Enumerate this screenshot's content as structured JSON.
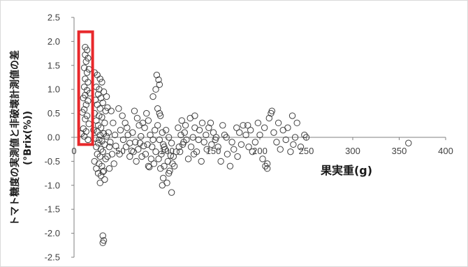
{
  "chart_data": {
    "type": "scatter",
    "title": "",
    "xlabel": "果実重(g)",
    "ylabel_line1": "トマト糖度の実測値と非破壊計測値の差",
    "ylabel_line2": "(°Brix(%))",
    "xlim": [
      0,
      400
    ],
    "ylim": [
      -2.5,
      2.5
    ],
    "x_ticks": [
      0,
      50,
      100,
      150,
      200,
      250,
      300,
      350,
      400
    ],
    "y_ticks": [
      2.5,
      2.0,
      1.5,
      1.0,
      0.5,
      0.0,
      -0.5,
      -1.0,
      -1.5,
      -2.0,
      -2.5
    ],
    "y_tick_labels": [
      "2.5",
      "2.0",
      "1.5",
      "1.0",
      "0.5",
      "0.0",
      "-0.5",
      "-1.0",
      "-1.5",
      "-2.0",
      "-2.5"
    ],
    "x_tick_labels": [
      "0",
      "50",
      "100",
      "150",
      "200",
      "250",
      "300",
      "350",
      "400"
    ],
    "grid": false,
    "marker": "open-circle",
    "marker_color": "#404040",
    "highlight": {
      "x_range": [
        5,
        20
      ],
      "y_range": [
        -0.15,
        2.2
      ],
      "color": "#e8282b"
    },
    "points": [
      [
        12,
        1.88
      ],
      [
        14,
        1.82
      ],
      [
        12,
        1.72
      ],
      [
        15,
        1.65
      ],
      [
        13,
        1.58
      ],
      [
        11,
        1.45
      ],
      [
        16,
        1.42
      ],
      [
        14,
        1.35
      ],
      [
        12,
        1.22
      ],
      [
        15,
        1.15
      ],
      [
        11,
        1.05
      ],
      [
        14,
        0.98
      ],
      [
        17,
        0.92
      ],
      [
        12,
        0.88
      ],
      [
        10,
        0.82
      ],
      [
        15,
        0.76
      ],
      [
        13,
        0.68
      ],
      [
        11,
        0.58
      ],
      [
        9,
        0.52
      ],
      [
        14,
        0.45
      ],
      [
        12,
        0.38
      ],
      [
        16,
        0.28
      ],
      [
        10,
        0.18
      ],
      [
        13,
        0.12
      ],
      [
        8,
        0.08
      ],
      [
        11,
        0.02
      ],
      [
        15,
        -0.05
      ],
      [
        22,
        1.35
      ],
      [
        25,
        1.3
      ],
      [
        28,
        1.22
      ],
      [
        30,
        1.15
      ],
      [
        24,
        1.05
      ],
      [
        27,
        1.0
      ],
      [
        32,
        0.95
      ],
      [
        26,
        0.9
      ],
      [
        29,
        0.82
      ],
      [
        23,
        0.78
      ],
      [
        31,
        0.72
      ],
      [
        25,
        0.68
      ],
      [
        28,
        0.6
      ],
      [
        34,
        0.55
      ],
      [
        22,
        0.5
      ],
      [
        27,
        0.45
      ],
      [
        30,
        0.42
      ],
      [
        24,
        0.35
      ],
      [
        33,
        0.3
      ],
      [
        26,
        0.25
      ],
      [
        29,
        0.2
      ],
      [
        21,
        0.15
      ],
      [
        25,
        0.12
      ],
      [
        32,
        0.08
      ],
      [
        28,
        0.05
      ],
      [
        35,
        0.02
      ],
      [
        23,
        -0.02
      ],
      [
        27,
        -0.05
      ],
      [
        30,
        -0.08
      ],
      [
        26,
        -0.12
      ],
      [
        33,
        -0.15
      ],
      [
        24,
        -0.2
      ],
      [
        29,
        -0.25
      ],
      [
        31,
        -0.3
      ],
      [
        25,
        -0.35
      ],
      [
        28,
        -0.4
      ],
      [
        34,
        -0.45
      ],
      [
        22,
        -0.5
      ],
      [
        27,
        -0.55
      ],
      [
        30,
        -0.6
      ],
      [
        24,
        -0.65
      ],
      [
        32,
        -0.7
      ],
      [
        26,
        -0.75
      ],
      [
        29,
        -0.8
      ],
      [
        33,
        -0.88
      ],
      [
        28,
        -0.95
      ],
      [
        31,
        -0.72
      ],
      [
        36,
        -0.4
      ],
      [
        38,
        -0.2
      ],
      [
        37,
        0.1
      ],
      [
        40,
        0.55
      ],
      [
        42,
        0.3
      ],
      [
        39,
        -0.1
      ],
      [
        41,
        -0.35
      ],
      [
        43,
        -0.55
      ],
      [
        38,
        -0.65
      ],
      [
        44,
        0.05
      ],
      [
        45,
        -0.18
      ],
      [
        36,
        0.62
      ],
      [
        35,
        0.85
      ],
      [
        31,
        -2.05
      ],
      [
        32,
        -2.15
      ],
      [
        31,
        -2.2
      ],
      [
        48,
        0.6
      ],
      [
        52,
        0.45
      ],
      [
        55,
        0.3
      ],
      [
        50,
        0.15
      ],
      [
        58,
        0.05
      ],
      [
        53,
        -0.05
      ],
      [
        60,
        -0.12
      ],
      [
        56,
        -0.2
      ],
      [
        62,
        -0.28
      ],
      [
        49,
        -0.35
      ],
      [
        65,
        0.55
      ],
      [
        68,
        0.4
      ],
      [
        70,
        0.25
      ],
      [
        63,
        0.1
      ],
      [
        72,
        0.02
      ],
      [
        66,
        -0.1
      ],
      [
        75,
        -0.18
      ],
      [
        69,
        -0.25
      ],
      [
        73,
        -0.4
      ],
      [
        67,
        -0.5
      ],
      [
        78,
        0.5
      ],
      [
        80,
        0.35
      ],
      [
        76,
        0.2
      ],
      [
        82,
        0.05
      ],
      [
        85,
        -0.05
      ],
      [
        79,
        -0.15
      ],
      [
        88,
        -0.3
      ],
      [
        83,
        -0.45
      ],
      [
        86,
        -0.55
      ],
      [
        81,
        -0.62
      ],
      [
        90,
        0.6
      ],
      [
        93,
        0.45
      ],
      [
        88,
        1.0
      ],
      [
        92,
        1.1
      ],
      [
        85,
        0.85
      ],
      [
        90,
        0.25
      ],
      [
        95,
        0.1
      ],
      [
        92,
        -0.05
      ],
      [
        97,
        -0.2
      ],
      [
        94,
        -0.35
      ],
      [
        80,
        -0.6
      ],
      [
        84,
        -0.2
      ],
      [
        60,
        -0.4
      ],
      [
        57,
        0.2
      ],
      [
        64,
        -0.3
      ],
      [
        71,
        -0.12
      ],
      [
        74,
        0.3
      ],
      [
        77,
        -0.35
      ],
      [
        87,
        0.15
      ],
      [
        91,
        -0.45
      ],
      [
        99,
        0.15
      ],
      [
        102,
        0.0
      ],
      [
        105,
        -0.12
      ],
      [
        98,
        -0.25
      ],
      [
        104,
        -0.38
      ],
      [
        101,
        -0.5
      ],
      [
        108,
        -0.6
      ],
      [
        103,
        -0.7
      ],
      [
        96,
        -0.85
      ],
      [
        100,
        -0.95
      ],
      [
        106,
        -0.55
      ],
      [
        110,
        -0.3
      ],
      [
        95,
        -1.0
      ],
      [
        102,
        -0.75
      ],
      [
        93,
        -0.65
      ],
      [
        92,
        0.5
      ],
      [
        89,
        1.3
      ],
      [
        91,
        1.2
      ],
      [
        96,
        -0.15
      ],
      [
        107,
        -0.4
      ],
      [
        112,
        0.2
      ],
      [
        115,
        0.05
      ],
      [
        118,
        -0.1
      ],
      [
        120,
        0.25
      ],
      [
        113,
        -0.2
      ],
      [
        116,
        0.35
      ],
      [
        119,
        0.1
      ],
      [
        121,
        -0.05
      ],
      [
        114,
        -0.3
      ],
      [
        117,
        -0.15
      ],
      [
        125,
        0.4
      ],
      [
        130,
        0.2
      ],
      [
        128,
        0.0
      ],
      [
        135,
        0.15
      ],
      [
        140,
        -0.1
      ],
      [
        132,
        -0.3
      ],
      [
        138,
        0.3
      ],
      [
        126,
        -0.2
      ],
      [
        129,
        -0.35
      ],
      [
        134,
        -0.05
      ],
      [
        142,
        0.05
      ],
      [
        145,
        0.2
      ],
      [
        148,
        -0.15
      ],
      [
        143,
        -0.25
      ],
      [
        150,
        0.1
      ],
      [
        152,
        -0.05
      ],
      [
        147,
        0.3
      ],
      [
        155,
        -0.2
      ],
      [
        158,
        -0.5
      ],
      [
        153,
        0.0
      ],
      [
        160,
        0.25
      ],
      [
        165,
        -0.35
      ],
      [
        168,
        -0.6
      ],
      [
        162,
        0.05
      ],
      [
        170,
        -0.1
      ],
      [
        175,
        0.2
      ],
      [
        172,
        -0.25
      ],
      [
        178,
        0.1
      ],
      [
        180,
        -0.15
      ],
      [
        176,
        -0.4
      ],
      [
        182,
        0.25
      ],
      [
        185,
        0.05
      ],
      [
        188,
        -0.2
      ],
      [
        190,
        0.15
      ],
      [
        195,
        -0.1
      ],
      [
        198,
        0.3
      ],
      [
        192,
        -0.3
      ],
      [
        200,
        0.05
      ],
      [
        203,
        -0.45
      ],
      [
        205,
        0.2
      ],
      [
        208,
        -0.55
      ],
      [
        210,
        0.4
      ],
      [
        212,
        0.5
      ],
      [
        215,
        0.1
      ],
      [
        218,
        -0.1
      ],
      [
        220,
        0.3
      ],
      [
        222,
        -0.25
      ],
      [
        225,
        0.15
      ],
      [
        228,
        -0.05
      ],
      [
        230,
        0.2
      ],
      [
        235,
        0.45
      ],
      [
        238,
        0.0
      ],
      [
        240,
        0.3
      ],
      [
        236,
        -0.15
      ],
      [
        244,
        -0.2
      ],
      [
        248,
        0.05
      ],
      [
        250,
        0.0
      ],
      [
        208,
        -0.65
      ],
      [
        206,
        -0.6
      ],
      [
        213,
        0.55
      ],
      [
        130,
        0.45
      ],
      [
        105,
        -1.15
      ],
      [
        97,
        -0.6
      ],
      [
        123,
        -0.45
      ],
      [
        137,
        -0.5
      ],
      [
        164,
        0.0
      ],
      [
        187,
        0.25
      ],
      [
        233,
        -0.3
      ],
      [
        360,
        -0.12
      ]
    ]
  }
}
